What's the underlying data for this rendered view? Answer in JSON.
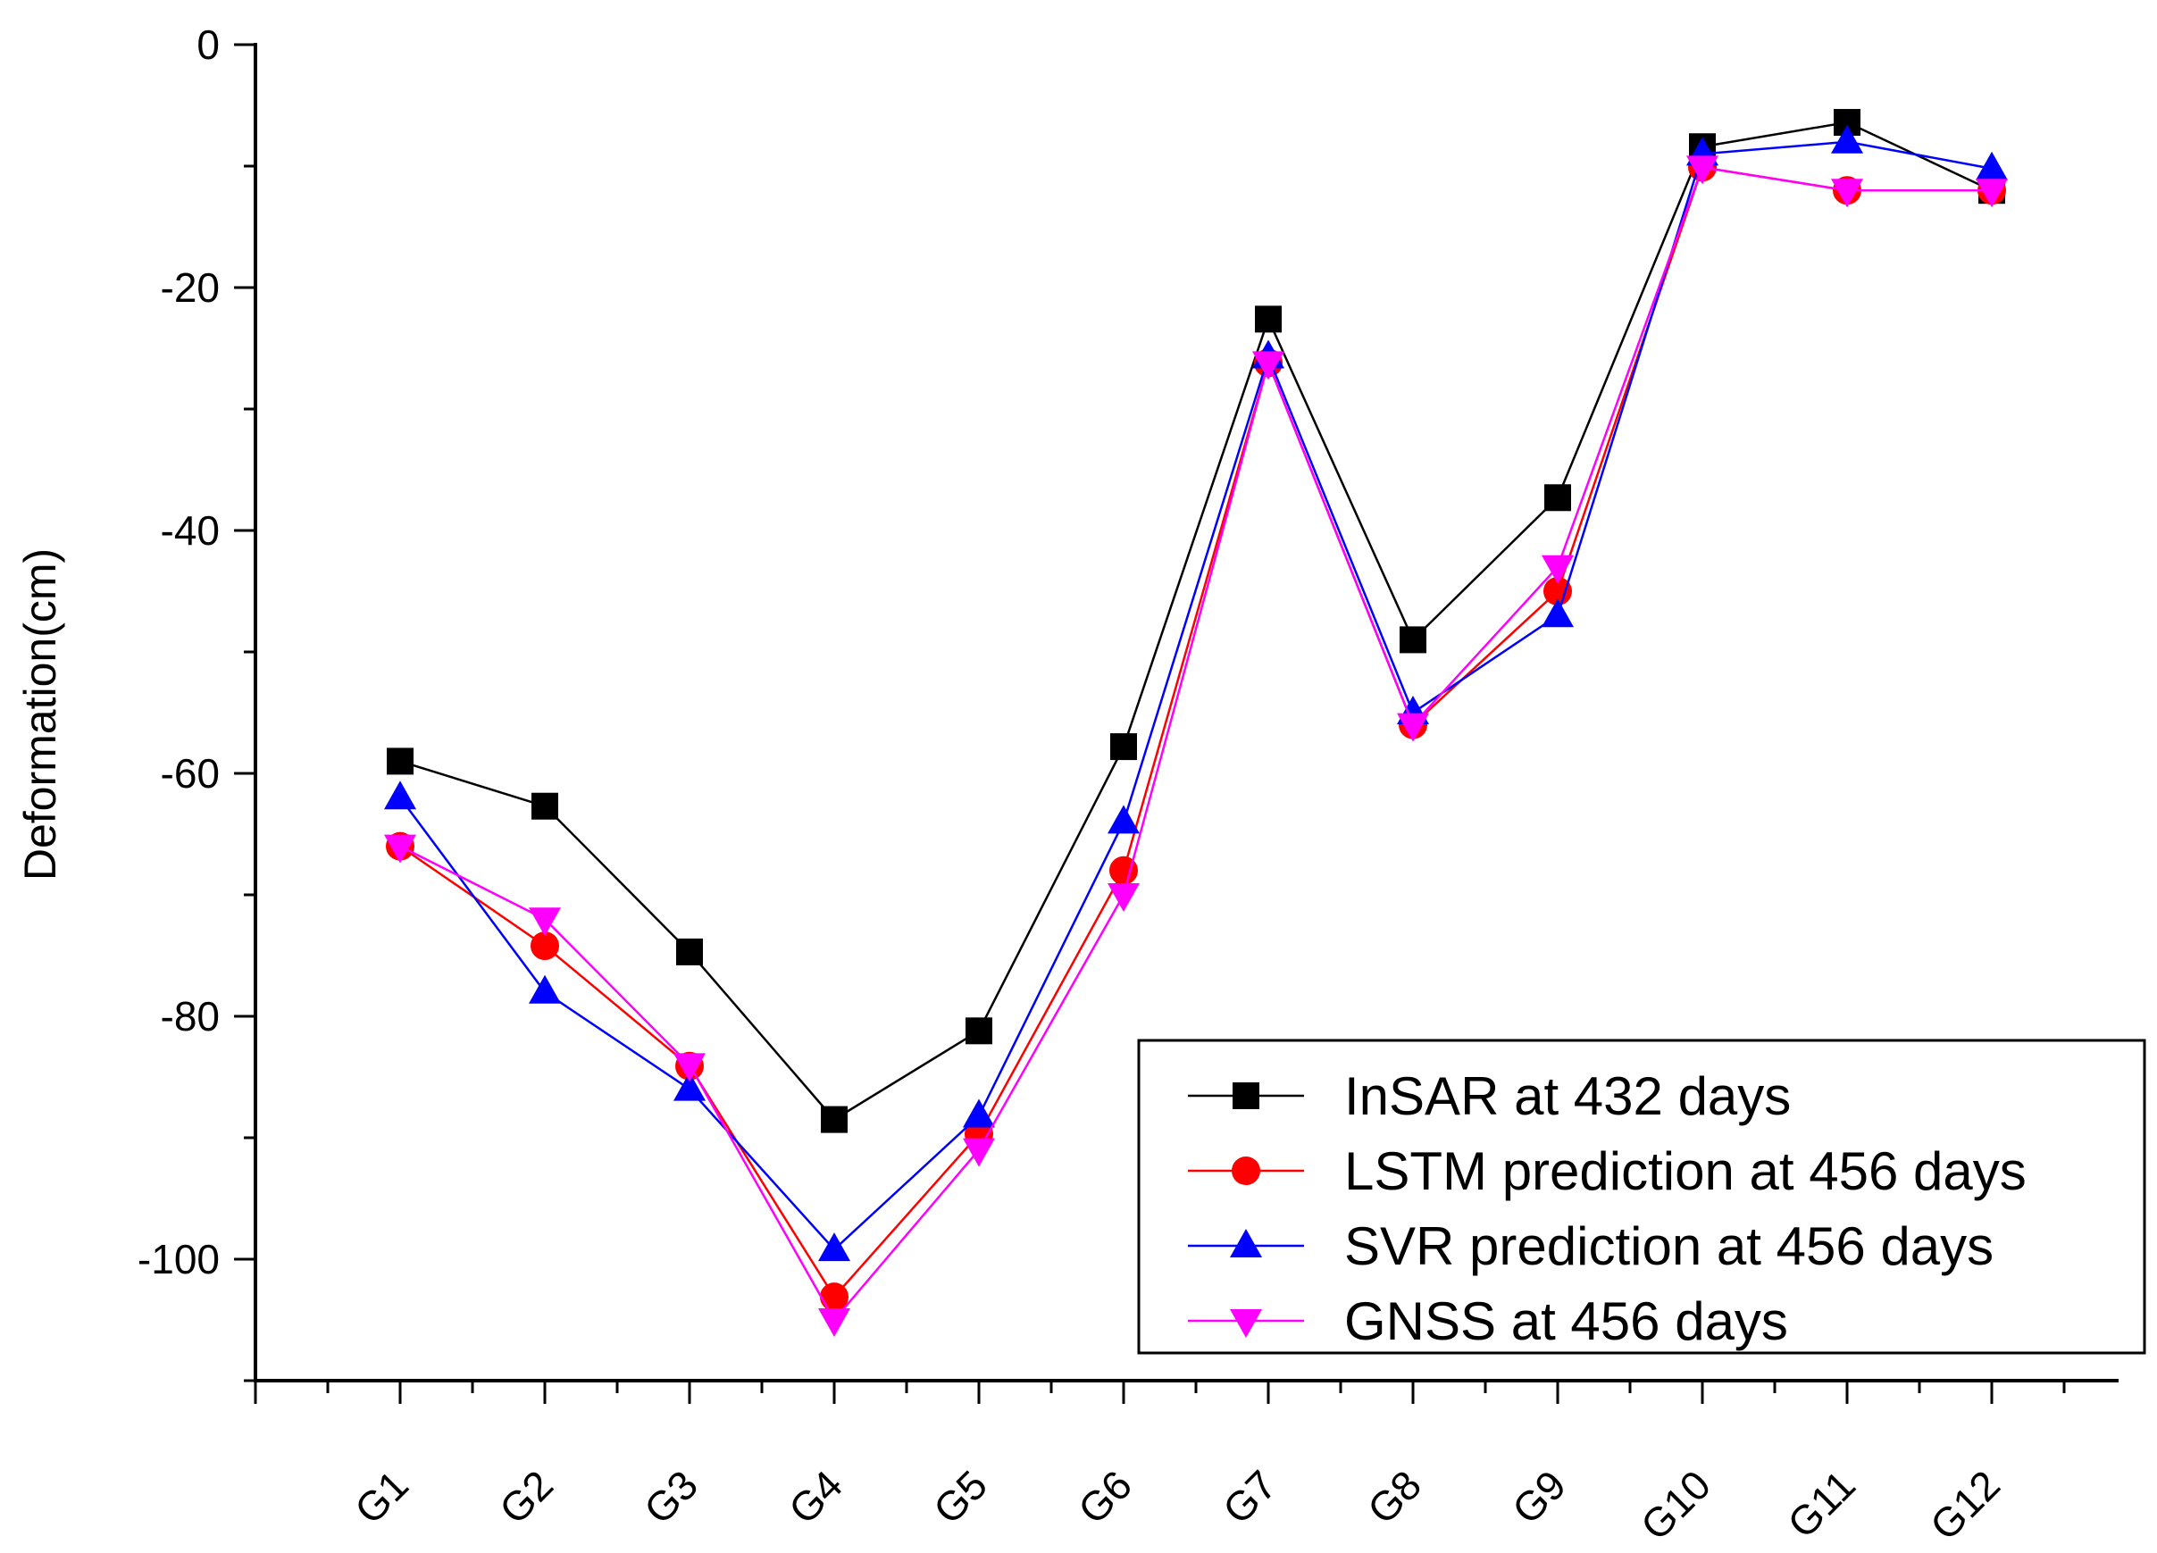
{
  "chart_data": {
    "type": "line",
    "title": "",
    "xlabel": "",
    "ylabel": "Deformation(cm)",
    "ylim": [
      -110,
      0
    ],
    "yticks": [
      0,
      -20,
      -40,
      -60,
      -80,
      -100
    ],
    "grid": false,
    "legend_position": "bottom-right",
    "categories": [
      "G1",
      "G2",
      "G3",
      "G4",
      "G5",
      "G6",
      "G7",
      "G8",
      "G9",
      "G10",
      "G11",
      "G12"
    ],
    "series": [
      {
        "name": "InSAR at 432 days",
        "color": "#000000",
        "marker": "square",
        "values": [
          -59,
          -62.7,
          -74.7,
          -88.5,
          -81.2,
          -57.8,
          -22.6,
          -49,
          -37.3,
          -8.4,
          -6.4,
          -12
        ]
      },
      {
        "name": "LSTM prediction at 456 days",
        "color": "#ff0000",
        "marker": "circle",
        "values": [
          -66,
          -74.2,
          -84.1,
          -103.1,
          -89.7,
          -68,
          -26.2,
          -56,
          -45,
          -10.1,
          -12,
          -12
        ]
      },
      {
        "name": "SVR prediction at 456 days",
        "color": "#0000ff",
        "marker": "triangle-up",
        "values": [
          -62,
          -78,
          -86,
          -99.2,
          -88.2,
          -64,
          -25.7,
          -55,
          -47,
          -9,
          -8,
          -10.2
        ]
      },
      {
        "name": "GNSS at 456 days",
        "color": "#ff00ff",
        "marker": "triangle-down",
        "values": [
          -66,
          -72,
          -84,
          -105,
          -91,
          -70,
          -26.2,
          -56,
          -43,
          -10.1,
          -12,
          -12
        ]
      }
    ]
  }
}
